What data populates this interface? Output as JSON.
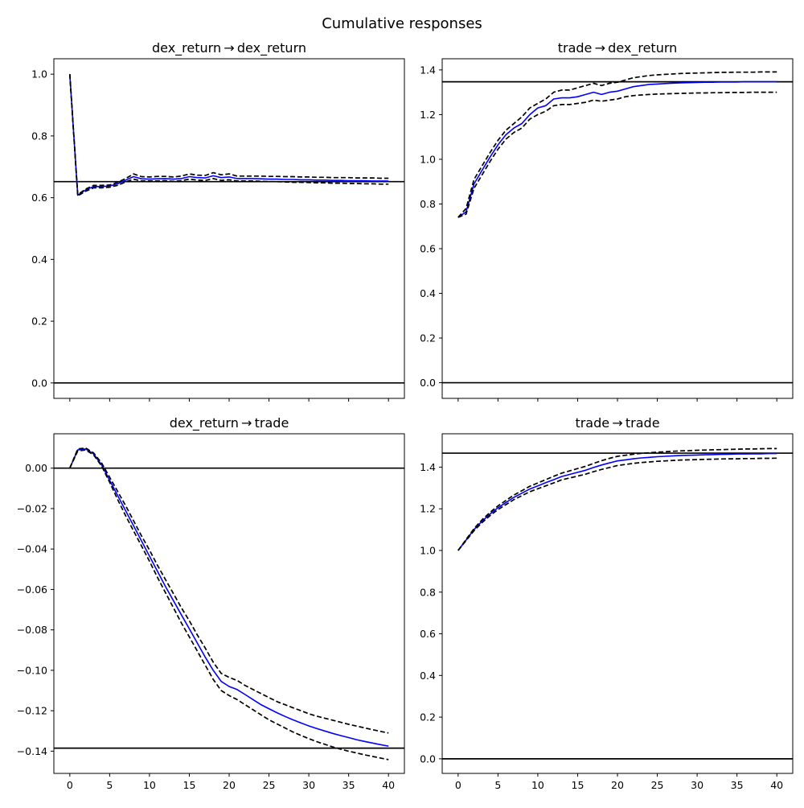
{
  "figure": {
    "title": "Cumulative responses"
  },
  "chart_data": [
    {
      "type": "line",
      "title": "dex_return → dex_return",
      "xlabel": "",
      "ylabel": "",
      "xlim": [
        -2,
        42
      ],
      "ylim": [
        -0.05,
        1.05
      ],
      "xticks": [
        0,
        5,
        10,
        15,
        20,
        25,
        30,
        35,
        40
      ],
      "show_xticklabels": false,
      "yticks": [
        0.0,
        0.2,
        0.4,
        0.6,
        0.8,
        1.0
      ],
      "ytick_labels": [
        "0.0",
        "0.2",
        "0.4",
        "0.6",
        "0.8",
        "1.0"
      ],
      "hlines": [
        0.0,
        0.652
      ],
      "x": [
        0,
        1,
        2,
        3,
        4,
        5,
        6,
        7,
        8,
        9,
        10,
        11,
        12,
        13,
        14,
        15,
        16,
        17,
        18,
        19,
        20,
        21,
        22,
        23,
        24,
        25,
        26,
        27,
        28,
        29,
        30,
        31,
        32,
        33,
        34,
        35,
        36,
        37,
        38,
        39,
        40
      ],
      "series": [
        {
          "role": "response",
          "color": "#0000ff",
          "dashed": false,
          "values": [
            1.0,
            0.608,
            0.625,
            0.636,
            0.636,
            0.638,
            0.645,
            0.657,
            0.668,
            0.661,
            0.66,
            0.661,
            0.662,
            0.66,
            0.662,
            0.668,
            0.665,
            0.664,
            0.671,
            0.665,
            0.667,
            0.662,
            0.662,
            0.662,
            0.661,
            0.66,
            0.66,
            0.659,
            0.659,
            0.658,
            0.658,
            0.657,
            0.657,
            0.656,
            0.656,
            0.655,
            0.655,
            0.655,
            0.654,
            0.654,
            0.654
          ]
        },
        {
          "role": "upper",
          "color": "#000000",
          "dashed": true,
          "values": [
            1.0,
            0.61,
            0.628,
            0.64,
            0.64,
            0.641,
            0.65,
            0.662,
            0.677,
            0.668,
            0.667,
            0.669,
            0.669,
            0.667,
            0.67,
            0.677,
            0.673,
            0.672,
            0.681,
            0.674,
            0.677,
            0.67,
            0.67,
            0.67,
            0.67,
            0.669,
            0.669,
            0.668,
            0.668,
            0.667,
            0.667,
            0.666,
            0.666,
            0.665,
            0.665,
            0.665,
            0.664,
            0.664,
            0.664,
            0.663,
            0.663
          ]
        },
        {
          "role": "lower",
          "color": "#000000",
          "dashed": true,
          "values": [
            1.0,
            0.606,
            0.621,
            0.632,
            0.632,
            0.634,
            0.64,
            0.651,
            0.66,
            0.654,
            0.654,
            0.654,
            0.655,
            0.653,
            0.655,
            0.66,
            0.657,
            0.656,
            0.662,
            0.656,
            0.658,
            0.654,
            0.654,
            0.654,
            0.653,
            0.652,
            0.652,
            0.651,
            0.65,
            0.65,
            0.649,
            0.648,
            0.648,
            0.647,
            0.647,
            0.646,
            0.646,
            0.645,
            0.645,
            0.644,
            0.644
          ]
        }
      ]
    },
    {
      "type": "line",
      "title": "trade → dex_return",
      "xlabel": "",
      "ylabel": "",
      "xlim": [
        -2,
        42
      ],
      "ylim": [
        -0.07,
        1.45
      ],
      "xticks": [
        0,
        5,
        10,
        15,
        20,
        25,
        30,
        35,
        40
      ],
      "show_xticklabels": false,
      "yticks": [
        0.0,
        0.2,
        0.4,
        0.6,
        0.8,
        1.0,
        1.2,
        1.4
      ],
      "ytick_labels": [
        "0.0",
        "0.2",
        "0.4",
        "0.6",
        "0.8",
        "1.0",
        "1.2",
        "1.4"
      ],
      "hlines": [
        0.0,
        1.347
      ],
      "x": [
        0,
        1,
        2,
        3,
        4,
        5,
        6,
        7,
        8,
        9,
        10,
        11,
        12,
        13,
        14,
        15,
        16,
        17,
        18,
        19,
        20,
        21,
        22,
        23,
        24,
        25,
        26,
        27,
        28,
        29,
        30,
        31,
        32,
        33,
        34,
        35,
        36,
        37,
        38,
        39,
        40
      ],
      "series": [
        {
          "role": "response",
          "color": "#0000ff",
          "dashed": false,
          "values": [
            0.74,
            0.765,
            0.89,
            0.95,
            1.01,
            1.065,
            1.11,
            1.14,
            1.16,
            1.2,
            1.23,
            1.24,
            1.27,
            1.275,
            1.275,
            1.28,
            1.29,
            1.3,
            1.29,
            1.3,
            1.305,
            1.315,
            1.325,
            1.33,
            1.335,
            1.337,
            1.339,
            1.341,
            1.342,
            1.343,
            1.344,
            1.345,
            1.345,
            1.346,
            1.346,
            1.346,
            1.347,
            1.347,
            1.347,
            1.347,
            1.347
          ]
        },
        {
          "role": "upper",
          "color": "#000000",
          "dashed": true,
          "values": [
            0.74,
            0.78,
            0.91,
            0.97,
            1.03,
            1.085,
            1.13,
            1.16,
            1.19,
            1.23,
            1.25,
            1.27,
            1.3,
            1.31,
            1.31,
            1.32,
            1.33,
            1.34,
            1.33,
            1.34,
            1.345,
            1.355,
            1.365,
            1.37,
            1.375,
            1.378,
            1.38,
            1.382,
            1.384,
            1.385,
            1.386,
            1.387,
            1.388,
            1.389,
            1.389,
            1.39,
            1.39,
            1.39,
            1.391,
            1.391,
            1.391
          ]
        },
        {
          "role": "lower",
          "color": "#000000",
          "dashed": true,
          "values": [
            0.74,
            0.755,
            0.87,
            0.93,
            0.99,
            1.045,
            1.09,
            1.12,
            1.14,
            1.18,
            1.2,
            1.215,
            1.24,
            1.245,
            1.245,
            1.25,
            1.255,
            1.265,
            1.26,
            1.265,
            1.27,
            1.28,
            1.285,
            1.288,
            1.29,
            1.292,
            1.293,
            1.294,
            1.295,
            1.296,
            1.297,
            1.297,
            1.298,
            1.298,
            1.299,
            1.299,
            1.299,
            1.3,
            1.3,
            1.3,
            1.3
          ]
        }
      ]
    },
    {
      "type": "line",
      "title": "dex_return → trade",
      "xlabel": "",
      "ylabel": "",
      "xlim": [
        -2,
        42
      ],
      "ylim": [
        -0.151,
        0.017
      ],
      "xticks": [
        0,
        5,
        10,
        15,
        20,
        25,
        30,
        35,
        40
      ],
      "show_xticklabels": true,
      "xtick_labels": [
        "0",
        "5",
        "10",
        "15",
        "20",
        "25",
        "30",
        "35",
        "40"
      ],
      "yticks": [
        0.0,
        -0.02,
        -0.04,
        -0.06,
        -0.08,
        -0.1,
        -0.12,
        -0.14
      ],
      "ytick_labels": [
        "0.00",
        "−0.02",
        "−0.04",
        "−0.06",
        "−0.08",
        "−0.10",
        "−0.12",
        "−0.14"
      ],
      "hlines": [
        0.0,
        -0.1385
      ],
      "x": [
        0,
        1,
        2,
        3,
        4,
        5,
        6,
        7,
        8,
        9,
        10,
        11,
        12,
        13,
        14,
        15,
        16,
        17,
        18,
        19,
        20,
        21,
        22,
        23,
        24,
        25,
        26,
        27,
        28,
        29,
        30,
        31,
        32,
        33,
        34,
        35,
        36,
        37,
        38,
        39,
        40
      ],
      "series": [
        {
          "role": "response",
          "color": "#0000ff",
          "dashed": false,
          "values": [
            0.0,
            0.009,
            0.0095,
            0.007,
            0.0015,
            -0.006,
            -0.0135,
            -0.021,
            -0.0285,
            -0.036,
            -0.0435,
            -0.051,
            -0.0585,
            -0.0655,
            -0.0725,
            -0.0795,
            -0.0865,
            -0.0935,
            -0.1,
            -0.1055,
            -0.108,
            -0.1095,
            -0.112,
            -0.1145,
            -0.117,
            -0.119,
            -0.121,
            -0.1228,
            -0.1245,
            -0.126,
            -0.1275,
            -0.1288,
            -0.13,
            -0.1312,
            -0.1323,
            -0.1333,
            -0.1343,
            -0.1352,
            -0.136,
            -0.1368,
            -0.1375
          ]
        },
        {
          "role": "upper",
          "color": "#000000",
          "dashed": true,
          "values": [
            0.0,
            0.0095,
            0.01,
            0.0075,
            0.0025,
            -0.0045,
            -0.0115,
            -0.0185,
            -0.026,
            -0.0335,
            -0.0405,
            -0.048,
            -0.055,
            -0.062,
            -0.069,
            -0.0755,
            -0.0825,
            -0.089,
            -0.096,
            -0.1015,
            -0.1035,
            -0.105,
            -0.1075,
            -0.1095,
            -0.1115,
            -0.1135,
            -0.1155,
            -0.117,
            -0.1185,
            -0.12,
            -0.1215,
            -0.1227,
            -0.1237,
            -0.1247,
            -0.1257,
            -0.1267,
            -0.1276,
            -0.1285,
            -0.1294,
            -0.1302,
            -0.131
          ]
        },
        {
          "role": "lower",
          "color": "#000000",
          "dashed": true,
          "values": [
            0.0,
            0.0085,
            0.009,
            0.0065,
            0.001,
            -0.007,
            -0.0155,
            -0.0235,
            -0.031,
            -0.0385,
            -0.046,
            -0.054,
            -0.0615,
            -0.069,
            -0.0765,
            -0.0835,
            -0.0905,
            -0.0975,
            -0.1045,
            -0.11,
            -0.1125,
            -0.1145,
            -0.117,
            -0.1195,
            -0.122,
            -0.1245,
            -0.1265,
            -0.1285,
            -0.1305,
            -0.1322,
            -0.1338,
            -0.1353,
            -0.1366,
            -0.1379,
            -0.139,
            -0.14,
            -0.1409,
            -0.1418,
            -0.1426,
            -0.1434,
            -0.1442
          ]
        }
      ]
    },
    {
      "type": "line",
      "title": "trade → trade",
      "xlabel": "",
      "ylabel": "",
      "xlim": [
        -2,
        42
      ],
      "ylim": [
        -0.07,
        1.56
      ],
      "xticks": [
        0,
        5,
        10,
        15,
        20,
        25,
        30,
        35,
        40
      ],
      "show_xticklabels": true,
      "xtick_labels": [
        "0",
        "5",
        "10",
        "15",
        "20",
        "25",
        "30",
        "35",
        "40"
      ],
      "yticks": [
        0.0,
        0.2,
        0.4,
        0.6,
        0.8,
        1.0,
        1.2,
        1.4
      ],
      "ytick_labels": [
        "0.0",
        "0.2",
        "0.4",
        "0.6",
        "0.8",
        "1.0",
        "1.2",
        "1.4"
      ],
      "hlines": [
        0.0,
        1.467
      ],
      "x": [
        0,
        1,
        2,
        3,
        4,
        5,
        6,
        7,
        8,
        9,
        10,
        11,
        12,
        13,
        14,
        15,
        16,
        17,
        18,
        19,
        20,
        21,
        22,
        23,
        24,
        25,
        26,
        27,
        28,
        29,
        30,
        31,
        32,
        33,
        34,
        35,
        36,
        37,
        38,
        39,
        40
      ],
      "series": [
        {
          "role": "response",
          "color": "#0000ff",
          "dashed": false,
          "values": [
            1.0,
            1.05,
            1.1,
            1.14,
            1.175,
            1.205,
            1.23,
            1.255,
            1.275,
            1.295,
            1.31,
            1.325,
            1.34,
            1.355,
            1.365,
            1.375,
            1.385,
            1.398,
            1.41,
            1.42,
            1.43,
            1.435,
            1.44,
            1.444,
            1.447,
            1.45,
            1.452,
            1.454,
            1.456,
            1.457,
            1.458,
            1.459,
            1.46,
            1.461,
            1.462,
            1.463,
            1.463,
            1.464,
            1.464,
            1.465,
            1.465
          ]
        },
        {
          "role": "upper",
          "color": "#000000",
          "dashed": true,
          "values": [
            1.0,
            1.053,
            1.105,
            1.147,
            1.183,
            1.214,
            1.24,
            1.266,
            1.287,
            1.308,
            1.324,
            1.34,
            1.356,
            1.371,
            1.382,
            1.393,
            1.404,
            1.418,
            1.431,
            1.442,
            1.452,
            1.457,
            1.462,
            1.466,
            1.469,
            1.472,
            1.474,
            1.476,
            1.478,
            1.479,
            1.481,
            1.482,
            1.483,
            1.484,
            1.485,
            1.486,
            1.487,
            1.487,
            1.488,
            1.489,
            1.489
          ]
        },
        {
          "role": "lower",
          "color": "#000000",
          "dashed": true,
          "values": [
            1.0,
            1.047,
            1.095,
            1.133,
            1.167,
            1.196,
            1.22,
            1.244,
            1.263,
            1.282,
            1.296,
            1.31,
            1.324,
            1.339,
            1.348,
            1.357,
            1.366,
            1.378,
            1.389,
            1.398,
            1.408,
            1.413,
            1.418,
            1.422,
            1.425,
            1.428,
            1.43,
            1.432,
            1.434,
            1.435,
            1.436,
            1.437,
            1.438,
            1.439,
            1.44,
            1.44,
            1.441,
            1.441,
            1.442,
            1.442,
            1.443
          ]
        }
      ]
    }
  ]
}
